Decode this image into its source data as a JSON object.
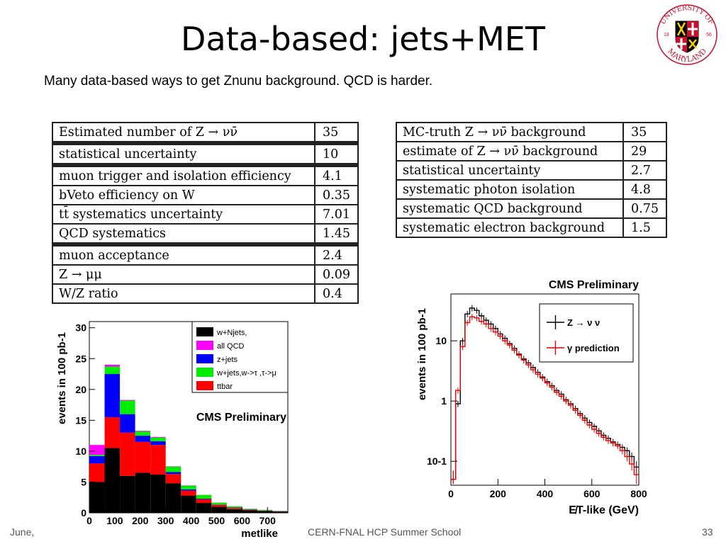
{
  "slide": {
    "title": "Data-based: jets+MET",
    "subtitle": "Many data-based ways to get Znunu background.  QCD is harder.",
    "logo": {
      "top_text": "UNIVERSITY OF",
      "bottom_text": "MARYLAND",
      "year_left": "18",
      "year_right": "56"
    },
    "footer": {
      "left": "June,",
      "center": "CERN-FNAL HCP Summer School",
      "page": "33"
    }
  },
  "table_left": {
    "rows": [
      {
        "label": "Estimated number of Z → νν̄",
        "value": "35"
      },
      {
        "label": "statistical uncertainty",
        "value": "10"
      },
      {
        "label": "muon trigger and isolation efficiency",
        "value": "4.1"
      },
      {
        "label": "bVeto efficiency on W",
        "value": "0.35"
      },
      {
        "label": "tt̄ systematics uncertainty",
        "value": "7.01"
      },
      {
        "label": "QCD systematics",
        "value": "1.45"
      },
      {
        "label": "muon acceptance",
        "value": "2.4"
      },
      {
        "label": "Z → μμ",
        "value": "0.09"
      },
      {
        "label": "W/Z ratio",
        "value": "0.4"
      }
    ]
  },
  "table_right": {
    "rows": [
      {
        "label": "MC-truth Z → νν̄ background",
        "value": "35"
      },
      {
        "label": "estimate of Z → νν̄ background",
        "value": "29"
      },
      {
        "label": "statistical uncertainty",
        "value": "2.7"
      },
      {
        "label": "systematic photon isolation",
        "value": "4.8"
      },
      {
        "label": "systematic QCD background",
        "value": "0.75"
      },
      {
        "label": "systematic electron background",
        "value": "1.5"
      }
    ]
  },
  "chart_data": [
    {
      "type": "bar",
      "stacked": true,
      "title": "CMS Preliminary",
      "xlabel": "metlike",
      "ylabel": "events in 100 pb-1",
      "xlim": [
        0,
        780
      ],
      "ylim": [
        0,
        31
      ],
      "xticks": [
        "0",
        "100",
        "200",
        "300",
        "400",
        "500",
        "600",
        "700"
      ],
      "yticks": [
        "0",
        "5",
        "10",
        "15",
        "20",
        "25",
        "30"
      ],
      "bin_edges": [
        0,
        60,
        120,
        180,
        240,
        300,
        360,
        420,
        480,
        540,
        600,
        660,
        720,
        780
      ],
      "series": [
        {
          "name": "w+Njets,",
          "color": "#000000",
          "values": [
            5.0,
            10.5,
            6.0,
            6.5,
            6.2,
            4.8,
            2.8,
            1.6,
            1.0,
            0.6,
            0.4,
            0.3,
            0.2
          ]
        },
        {
          "name": "ttbar",
          "color": "#ff0000",
          "values": [
            3.0,
            5.0,
            7.0,
            5.0,
            4.8,
            1.5,
            0.8,
            0.6,
            0.3,
            0.2,
            0.1,
            0.05,
            0.05
          ]
        },
        {
          "name": "z+jets",
          "color": "#0000ff",
          "values": [
            1.2,
            7.0,
            3.0,
            1.0,
            0.6,
            0.3,
            0.2,
            0.1,
            0.05,
            0.05,
            0.05,
            0.02,
            0.02
          ]
        },
        {
          "name": "w+jets,w->τ ,τ->μ",
          "color": "#00ee00",
          "values": [
            0.2,
            1.2,
            2.2,
            0.7,
            0.6,
            0.9,
            0.6,
            0.6,
            0.3,
            0.2,
            0.1,
            0.1,
            0.05
          ]
        },
        {
          "name": "all QCD",
          "color": "#ff00ff",
          "values": [
            1.6,
            0.3,
            0.1,
            0.1,
            0.1,
            0.05,
            0.05,
            0.02,
            0.02,
            0.02,
            0.02,
            0.02,
            0.02
          ]
        }
      ]
    },
    {
      "type": "line",
      "title": "CMS Preliminary",
      "xlabel": "E̸T-like (GeV)",
      "ylabel": "events in 100 pb-1",
      "yscale": "log",
      "xlim": [
        0,
        800
      ],
      "ylim": [
        0.04,
        60
      ],
      "xticks": [
        "0",
        "200",
        "400",
        "600",
        "800"
      ],
      "yticks": [
        "10-1",
        "1",
        "10"
      ],
      "series": [
        {
          "name": "Z → ν ν",
          "color": "#000000",
          "x": [
            10,
            30,
            50,
            70,
            90,
            110,
            130,
            150,
            170,
            190,
            210,
            230,
            250,
            270,
            290,
            310,
            330,
            350,
            370,
            390,
            410,
            430,
            450,
            470,
            490,
            510,
            530,
            550,
            570,
            590,
            610,
            630,
            650,
            670,
            690,
            710,
            730,
            750,
            770,
            790
          ],
          "y": [
            0.05,
            0.9,
            10,
            28,
            35,
            32,
            26,
            22,
            19,
            16,
            13,
            11,
            9,
            7.5,
            6,
            5,
            4.3,
            3.6,
            3.0,
            2.5,
            2.1,
            1.8,
            1.5,
            1.3,
            1.05,
            0.9,
            0.75,
            0.62,
            0.52,
            0.44,
            0.38,
            0.32,
            0.27,
            0.24,
            0.21,
            0.19,
            0.17,
            0.15,
            0.12,
            0.08
          ]
        },
        {
          "name": "γ prediction",
          "color": "#ee0000",
          "x": [
            10,
            30,
            50,
            70,
            90,
            110,
            130,
            150,
            170,
            190,
            210,
            230,
            250,
            270,
            290,
            310,
            330,
            350,
            370,
            390,
            410,
            430,
            450,
            470,
            490,
            510,
            530,
            550,
            570,
            590,
            610,
            630,
            650,
            670,
            690,
            710,
            730,
            750,
            770,
            790
          ],
          "y": [
            0.05,
            1.5,
            8,
            20,
            25,
            24,
            21,
            19,
            16,
            14,
            12,
            10,
            8.5,
            7,
            5.8,
            4.8,
            4.0,
            3.3,
            2.8,
            2.4,
            2.0,
            1.7,
            1.4,
            1.2,
            1.0,
            0.85,
            0.7,
            0.58,
            0.48,
            0.4,
            0.34,
            0.29,
            0.25,
            0.22,
            0.2,
            0.18,
            0.15,
            0.12,
            0.09,
            0.06
          ]
        }
      ]
    }
  ]
}
